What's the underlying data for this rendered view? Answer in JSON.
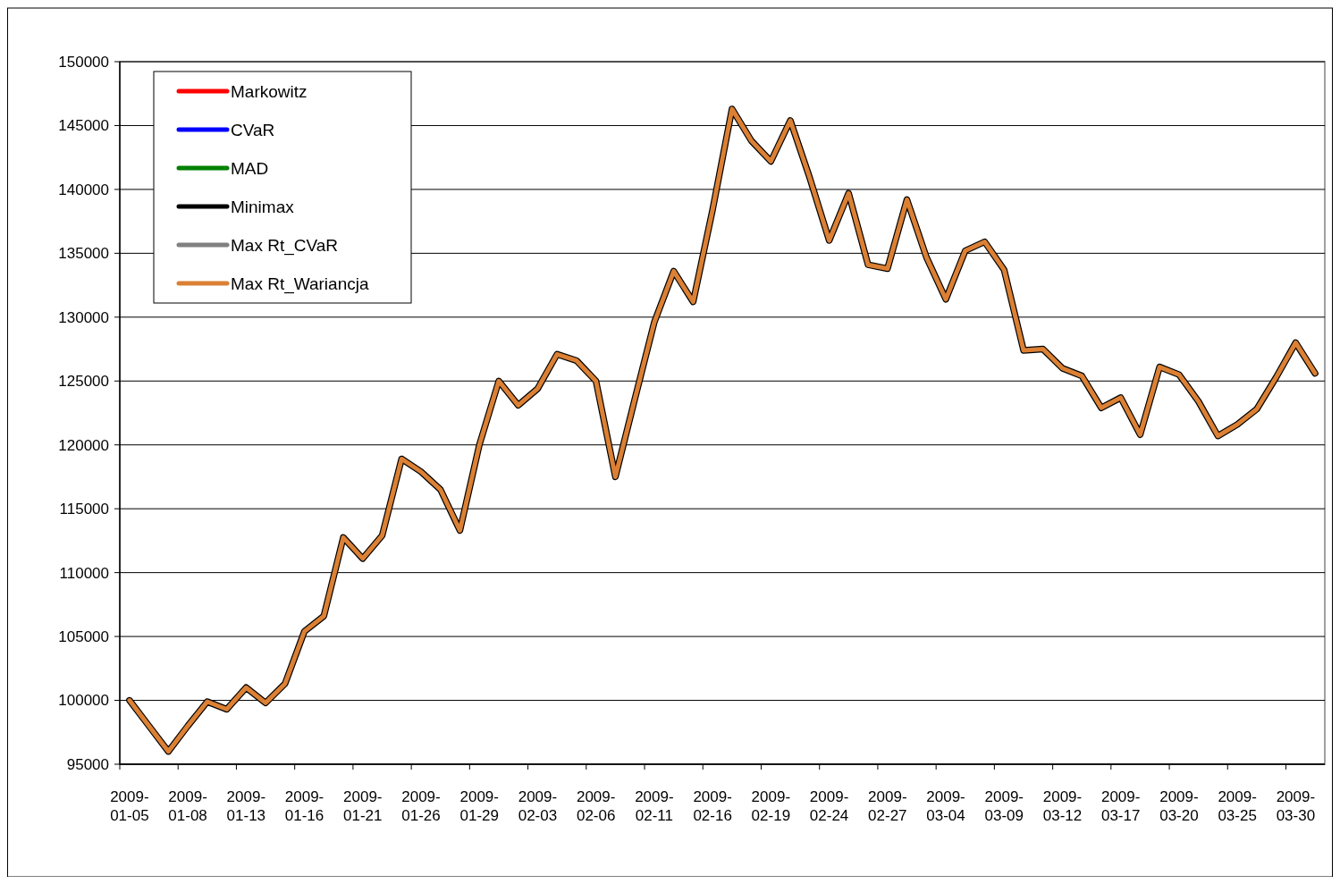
{
  "chart_data": {
    "type": "line",
    "categories": [
      "2009-01-05",
      null,
      null,
      "2009-01-08",
      null,
      null,
      "2009-01-13",
      null,
      null,
      "2009-01-16",
      null,
      null,
      "2009-01-21",
      null,
      null,
      "2009-01-26",
      null,
      null,
      "2009-01-29",
      null,
      null,
      "2009-02-03",
      null,
      null,
      "2009-02-06",
      null,
      null,
      "2009-02-11",
      null,
      null,
      "2009-02-16",
      null,
      null,
      "2009-02-19",
      null,
      null,
      "2009-02-24",
      null,
      null,
      "2009-02-27",
      null,
      null,
      "2009-03-04",
      null,
      null,
      "2009-03-09",
      null,
      null,
      "2009-03-12",
      null,
      null,
      "2009-03-17",
      null,
      null,
      "2009-03-20",
      null,
      null,
      "2009-03-25",
      null,
      null,
      "2009-03-30",
      null
    ],
    "ylim": [
      95000,
      150000
    ],
    "yticks": [
      95000,
      100000,
      105000,
      110000,
      115000,
      120000,
      125000,
      130000,
      135000,
      140000,
      145000,
      150000
    ],
    "grid": "y",
    "legend": "top left",
    "marker": "none",
    "line_style": "solid",
    "series": [
      {
        "name": "Markowitz",
        "color": "#ff0000",
        "values": [
          null,
          null,
          null,
          null,
          null,
          null,
          null,
          null,
          null,
          null,
          null,
          null,
          null,
          null,
          null,
          null,
          null,
          null,
          null,
          null,
          null,
          null,
          null,
          null,
          null,
          null,
          null,
          null,
          null,
          null,
          null,
          null,
          null,
          null,
          null,
          null,
          null,
          null,
          null,
          null,
          null,
          null,
          null,
          null,
          null,
          null,
          null,
          null,
          null,
          null,
          null,
          null,
          null,
          null,
          null,
          null,
          null,
          null,
          null,
          null,
          null,
          null
        ]
      },
      {
        "name": "CVaR",
        "color": "#0000ff",
        "values": [
          null,
          null,
          null,
          null,
          null,
          null,
          null,
          null,
          null,
          null,
          null,
          null,
          null,
          null,
          null,
          null,
          null,
          null,
          null,
          null,
          null,
          null,
          null,
          null,
          null,
          null,
          null,
          null,
          null,
          null,
          null,
          null,
          null,
          null,
          null,
          null,
          null,
          null,
          null,
          null,
          null,
          null,
          null,
          null,
          null,
          null,
          null,
          null,
          null,
          null,
          null,
          null,
          null,
          null,
          null,
          null,
          null,
          null,
          null,
          null,
          null,
          null
        ]
      },
      {
        "name": "MAD",
        "color": "#008000",
        "values": [
          null,
          null,
          null,
          null,
          null,
          null,
          null,
          null,
          null,
          null,
          null,
          null,
          null,
          null,
          null,
          null,
          null,
          null,
          null,
          null,
          null,
          null,
          null,
          null,
          null,
          null,
          null,
          null,
          null,
          null,
          null,
          null,
          null,
          null,
          null,
          null,
          null,
          null,
          null,
          null,
          null,
          null,
          null,
          null,
          null,
          null,
          null,
          null,
          null,
          null,
          null,
          null,
          null,
          null,
          null,
          null,
          null,
          null,
          null,
          null,
          null,
          null
        ]
      },
      {
        "name": "Minimax",
        "color": "#000000",
        "values": [
          100000,
          98000,
          96000,
          98000,
          99900,
          99300,
          101000,
          99800,
          101300,
          105400,
          106600,
          112750,
          111100,
          112900,
          118900,
          117900,
          116500,
          113300,
          120000,
          125000,
          123100,
          124400,
          127100,
          126600,
          125000,
          117500,
          123600,
          129600,
          133600,
          131200,
          138400,
          146300,
          143800,
          142200,
          145400,
          140900,
          136000,
          139700,
          134100,
          133800,
          139200,
          134700,
          131400,
          135200,
          135900,
          133700,
          127400,
          127500,
          126000,
          125400,
          122900,
          123700,
          120800,
          126100,
          125500,
          123400,
          120700,
          121600,
          122800,
          125300,
          128000,
          125600
        ]
      },
      {
        "name": "Max Rt_CVaR",
        "color": "#808080",
        "values": [
          null,
          null,
          null,
          null,
          null,
          null,
          null,
          null,
          null,
          null,
          null,
          null,
          null,
          null,
          null,
          null,
          null,
          null,
          null,
          null,
          null,
          null,
          null,
          null,
          null,
          null,
          null,
          null,
          null,
          null,
          null,
          null,
          null,
          null,
          null,
          null,
          null,
          null,
          null,
          null,
          null,
          null,
          null,
          null,
          null,
          null,
          null,
          null,
          null,
          null,
          null,
          null,
          null,
          null,
          null,
          null,
          null,
          null,
          null,
          null,
          null,
          null
        ]
      },
      {
        "name": "Max Rt_Wariancja",
        "color": "#db8034",
        "values": [
          100000,
          98000,
          96000,
          98000,
          99900,
          99300,
          101000,
          99800,
          101300,
          105400,
          106600,
          112750,
          111100,
          112900,
          118900,
          117900,
          116500,
          113300,
          120000,
          125000,
          123100,
          124400,
          127100,
          126600,
          125000,
          117500,
          123600,
          129600,
          133600,
          131200,
          138400,
          146300,
          143800,
          142200,
          145400,
          140900,
          136000,
          139700,
          134100,
          133800,
          139200,
          134700,
          131400,
          135200,
          135900,
          133700,
          127400,
          127500,
          126000,
          125400,
          122900,
          123700,
          120800,
          126100,
          125500,
          123400,
          120700,
          121600,
          122800,
          125300,
          128000,
          125600
        ]
      }
    ]
  }
}
